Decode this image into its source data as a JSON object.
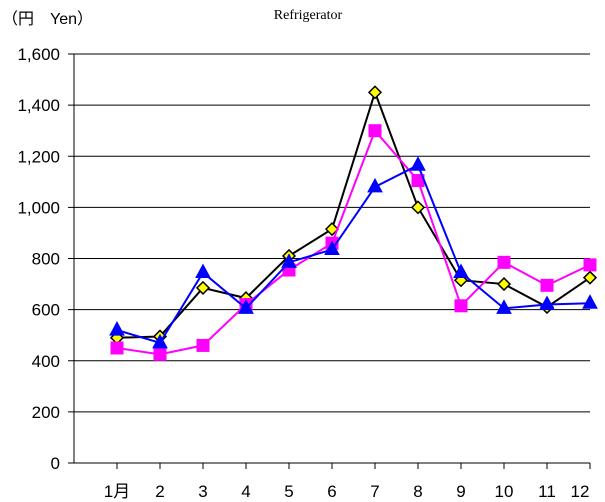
{
  "chart_data": {
    "type": "line",
    "title": "Refrigerator",
    "unit_label": "（円　Yen）",
    "categories": [
      "1月",
      "2",
      "3",
      "4",
      "5",
      "6",
      "7",
      "8",
      "9",
      "10",
      "11",
      "12"
    ],
    "ylim": [
      0,
      1600
    ],
    "yticks": [
      0,
      200,
      400,
      600,
      800,
      1000,
      1200,
      1400,
      1600
    ],
    "ytick_labels": [
      "0",
      "200",
      "400",
      "600",
      "800",
      "1,000",
      "1,200",
      "1,400",
      "1,600"
    ],
    "grid": true,
    "legend": "none",
    "series": [
      {
        "color": "#000000",
        "marker": "diamond",
        "marker_fill": "#ffff00",
        "values": [
          490,
          495,
          685,
          645,
          810,
          915,
          1450,
          1000,
          715,
          700,
          610,
          725
        ]
      },
      {
        "color": "#ff00ff",
        "marker": "square",
        "marker_fill": "#ff00ff",
        "values": [
          450,
          425,
          460,
          620,
          755,
          860,
          1300,
          1105,
          615,
          785,
          695,
          775
        ]
      },
      {
        "color": "#0000ff",
        "marker": "triangle",
        "marker_fill": "#0000ff",
        "values": [
          520,
          470,
          745,
          605,
          785,
          835,
          1080,
          1165,
          745,
          605,
          620,
          625
        ]
      }
    ]
  }
}
